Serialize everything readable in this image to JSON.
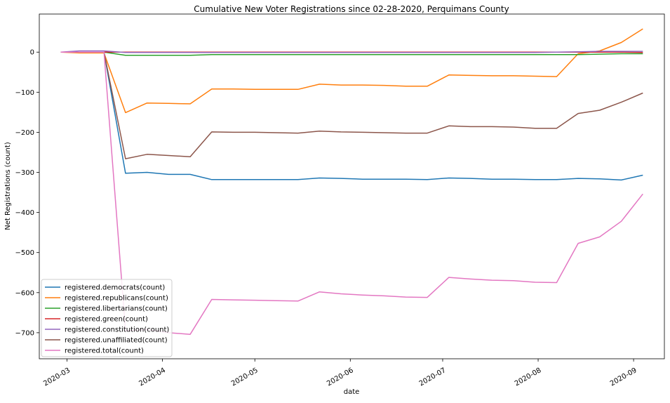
{
  "chart_data": {
    "type": "line",
    "title": "Cumulative New Voter Registrations since 02-28-2020, Perquimans County",
    "xlabel": "date",
    "ylabel": "Net Registrations (count)",
    "ylim": [
      -765,
      95
    ],
    "yticks": [
      0,
      -100,
      -200,
      -300,
      -400,
      -500,
      -600,
      -700
    ],
    "xlim": [
      "2020-02-21",
      "2020-09-11"
    ],
    "xticks": [
      {
        "date": "2020-03-01",
        "label": "2020-03"
      },
      {
        "date": "2020-04-01",
        "label": "2020-04"
      },
      {
        "date": "2020-05-01",
        "label": "2020-05"
      },
      {
        "date": "2020-06-01",
        "label": "2020-06"
      },
      {
        "date": "2020-07-01",
        "label": "2020-07"
      },
      {
        "date": "2020-08-01",
        "label": "2020-08"
      },
      {
        "date": "2020-09-01",
        "label": "2020-09"
      }
    ],
    "x": [
      "2020-02-28",
      "2020-03-05",
      "2020-03-13",
      "2020-03-20",
      "2020-03-27",
      "2020-04-03",
      "2020-04-10",
      "2020-04-17",
      "2020-04-24",
      "2020-05-01",
      "2020-05-08",
      "2020-05-15",
      "2020-05-22",
      "2020-05-29",
      "2020-06-05",
      "2020-06-12",
      "2020-06-19",
      "2020-06-26",
      "2020-07-03",
      "2020-07-10",
      "2020-07-17",
      "2020-07-24",
      "2020-07-31",
      "2020-08-07",
      "2020-08-14",
      "2020-08-21",
      "2020-08-28",
      "2020-09-04"
    ],
    "grid": false,
    "legend_position": "lower-left",
    "series": [
      {
        "name": "registered.democrats(count)",
        "color": "#1f77b4",
        "values": [
          0,
          0,
          0,
          -302,
          -300,
          -305,
          -305,
          -318,
          -318,
          -318,
          -318,
          -318,
          -314,
          -315,
          -317,
          -317,
          -317,
          -318,
          -314,
          -315,
          -317,
          -317,
          -318,
          -318,
          -315,
          -316,
          -319,
          -307
        ]
      },
      {
        "name": "registered.republicans(count)",
        "color": "#ff7f0e",
        "values": [
          0,
          -2,
          -2,
          -151,
          -127,
          -128,
          -129,
          -92,
          -92,
          -93,
          -93,
          -93,
          -80,
          -82,
          -82,
          -83,
          -85,
          -85,
          -57,
          -58,
          -59,
          -59,
          -60,
          -61,
          -4,
          3,
          24,
          58
        ]
      },
      {
        "name": "registered.libertarians(count)",
        "color": "#2ca02c",
        "values": [
          0,
          0,
          0,
          -8,
          -8,
          -8,
          -8,
          -6,
          -6,
          -6,
          -6,
          -6,
          -6,
          -6,
          -6,
          -6,
          -6,
          -6,
          -6,
          -6,
          -6,
          -6,
          -6,
          -6,
          -6,
          -5,
          -4,
          -4
        ]
      },
      {
        "name": "registered.green(count)",
        "color": "#d62728",
        "values": [
          0,
          0,
          0,
          0,
          0,
          0,
          0,
          0,
          0,
          0,
          0,
          0,
          0,
          0,
          0,
          0,
          0,
          0,
          0,
          0,
          0,
          0,
          0,
          0,
          0,
          0,
          0,
          -1
        ]
      },
      {
        "name": "registered.constitution(count)",
        "color": "#9467bd",
        "values": [
          0,
          3,
          3,
          -1,
          -1,
          -1,
          -1,
          -1,
          -1,
          -1,
          -1,
          -1,
          -1,
          -1,
          -1,
          -1,
          -1,
          -1,
          -1,
          -1,
          -1,
          -1,
          -1,
          0,
          1,
          2,
          2,
          2
        ]
      },
      {
        "name": "registered.unaffiliated(count)",
        "color": "#8c564b",
        "values": [
          0,
          0,
          0,
          -266,
          -255,
          -258,
          -261,
          -199,
          -200,
          -200,
          -201,
          -202,
          -197,
          -199,
          -200,
          -201,
          -202,
          -202,
          -184,
          -186,
          -186,
          -187,
          -190,
          -190,
          -153,
          -145,
          -125,
          -102
        ]
      },
      {
        "name": "registered.total(count)",
        "color": "#e377c2",
        "values": [
          0,
          0,
          0,
          -695,
          -692,
          -700,
          -704,
          -617,
          -618,
          -619,
          -620,
          -621,
          -598,
          -603,
          -606,
          -608,
          -611,
          -612,
          -562,
          -566,
          -569,
          -570,
          -574,
          -575,
          -477,
          -461,
          -422,
          -354
        ]
      }
    ]
  }
}
